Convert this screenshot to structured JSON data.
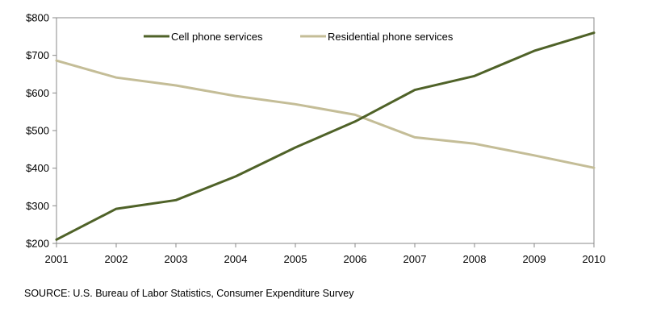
{
  "chart_data": {
    "type": "line",
    "title": "",
    "xlabel": "",
    "ylabel": "",
    "x": [
      "2001",
      "2002",
      "2003",
      "2004",
      "2005",
      "2006",
      "2007",
      "2008",
      "2009",
      "2010"
    ],
    "y_ticks": [
      "$200",
      "$300",
      "$400",
      "$500",
      "$600",
      "$700",
      "$800"
    ],
    "y_tick_values": [
      200,
      300,
      400,
      500,
      600,
      700,
      800
    ],
    "ylim": [
      200,
      800
    ],
    "grid": false,
    "legend_position": "top-center",
    "series": [
      {
        "name": "Cell phone services",
        "color": "#4f6228",
        "values": [
          210,
          292,
          315,
          378,
          455,
          524,
          608,
          645,
          712,
          760
        ]
      },
      {
        "name": "Residential phone services",
        "color": "#c4bd97",
        "values": [
          686,
          641,
          620,
          592,
          570,
          542,
          482,
          465,
          434,
          401
        ]
      }
    ]
  },
  "source": "SOURCE: U.S. Bureau of Labor Statistics,  Consumer Expenditure Survey"
}
